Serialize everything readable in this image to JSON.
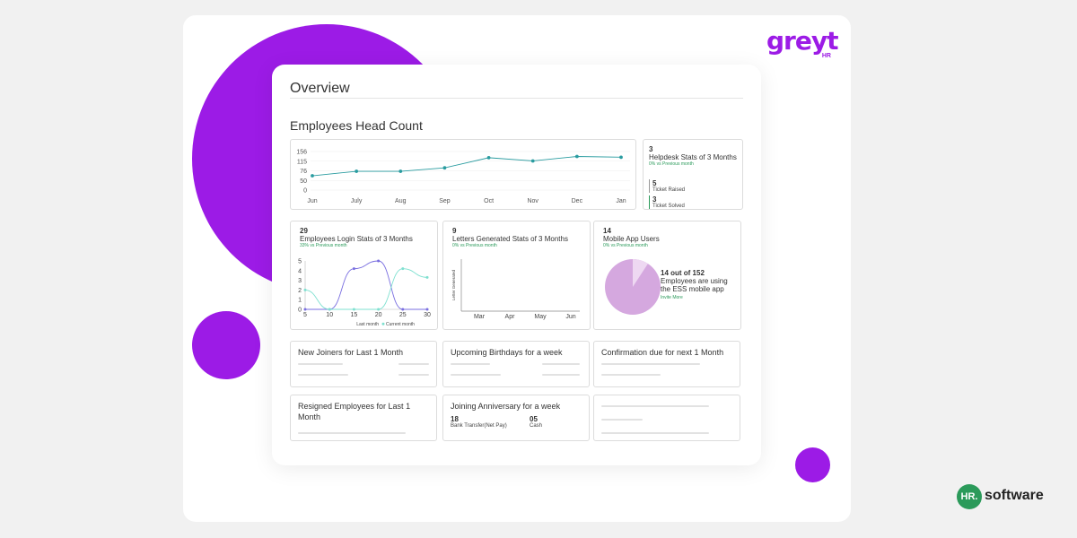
{
  "brand": {
    "logo_text": "greyt",
    "logo_sub": "HR",
    "footer_badge": "HR.",
    "footer_text": "software"
  },
  "overview": {
    "title": "Overview",
    "section_title": "Employees Head Count"
  },
  "headcount_chart": {
    "type": "line",
    "x": [
      "Jun",
      "July",
      "Aug",
      "Sep",
      "Oct",
      "Nov",
      "Dec",
      "Jan"
    ],
    "y_ticks": [
      "156",
      "115",
      "76",
      "50",
      "0"
    ],
    "values": [
      58,
      76,
      76,
      90,
      131,
      118,
      136,
      133
    ],
    "ylim": [
      0,
      156
    ],
    "color": "#2a9ca0"
  },
  "helpdesk": {
    "count": "3",
    "label": "Helpdesk Stats of 3 Months",
    "change": "0% vs Previous month",
    "raised_count": "5",
    "raised_label": "Ticket Raised",
    "solved_count": "3",
    "solved_label": "Ticket Solved"
  },
  "login_stats": {
    "count": "29",
    "label": "Employees Login Stats of 3 Months",
    "change": "33% vs Previous month",
    "x_ticks": [
      "5",
      "10",
      "15",
      "20",
      "25",
      "30"
    ],
    "y_ticks": [
      "5",
      "4",
      "3",
      "2",
      "1",
      "0"
    ],
    "legend_last": "Last month",
    "legend_current": "Current month",
    "chart_data": {
      "type": "line",
      "xlim": [
        5,
        30
      ],
      "ylim": [
        0,
        5
      ],
      "series": [
        {
          "name": "Last month",
          "x": [
            5,
            10,
            15,
            20,
            25,
            30
          ],
          "y": [
            0,
            0,
            4.2,
            5,
            0,
            0
          ],
          "color": "#7a6fe0"
        },
        {
          "name": "Current month",
          "x": [
            5,
            10,
            15,
            20,
            25,
            30
          ],
          "y": [
            2,
            0,
            0,
            0,
            4.2,
            3.3
          ],
          "color": "#7fe0d0"
        }
      ]
    }
  },
  "letters": {
    "count": "9",
    "label": "Letters Generated Stats of 3 Months",
    "change": "0% vs Previous month",
    "y_axis_label": "Letter Generated",
    "x_ticks": [
      "Mar",
      "Apr",
      "May",
      "Jun"
    ]
  },
  "mobile": {
    "count": "14",
    "label": "Mobile App Users",
    "change": "0% vs Previous month",
    "stat_main": "14 out of 152",
    "stat_line1": "Employees are using",
    "stat_line2": "the ESS mobile app",
    "invite": "Invite More",
    "chart_data": {
      "type": "pie",
      "values": [
        14,
        152
      ],
      "colors": [
        "#eed8f2",
        "#d5a8df"
      ]
    }
  },
  "cards": {
    "new_joiners": "New Joiners for Last 1 Month",
    "birthdays": "Upcoming Birthdays for a week",
    "confirmation": "Confirmation due for next 1 Month",
    "resigned": "Resigned Employees for Last 1 Month",
    "anniversary": "Joining Anniversary for a week",
    "anniv_bank_count": "18",
    "anniv_bank_label": "Bank Transfer(Net Pay)",
    "anniv_cash_count": "05",
    "anniv_cash_label": "Cash"
  }
}
